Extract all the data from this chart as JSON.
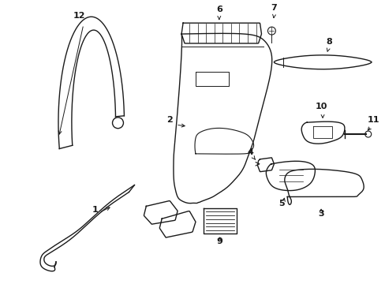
{
  "bg_color": "#ffffff",
  "line_color": "#1a1a1a",
  "lw": 1.0
}
